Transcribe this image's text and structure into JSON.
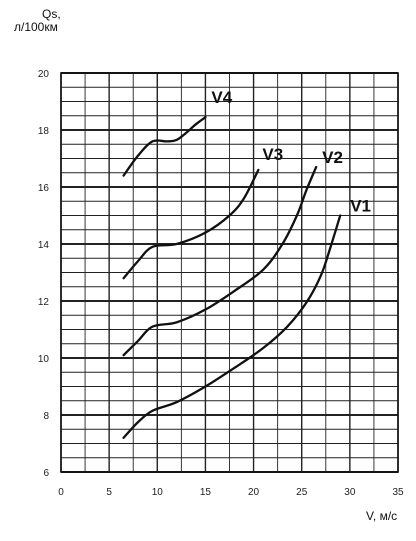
{
  "chart_data": {
    "type": "line",
    "ylabel_lines": [
      "Qs,",
      "л/100км"
    ],
    "xlabel": "V, м/с",
    "xlim": [
      0,
      35
    ],
    "ylim": [
      6,
      20
    ],
    "xticks": [
      0,
      5,
      10,
      15,
      20,
      25,
      30,
      35
    ],
    "yticks": [
      6,
      8,
      10,
      12,
      14,
      16,
      18,
      20
    ],
    "x_minor_step": 2.5,
    "y_minor_step": 0.5,
    "grid": true,
    "series": [
      {
        "name": "V1",
        "color": "#111111",
        "points": [
          [
            6.5,
            7.2
          ],
          [
            8.0,
            7.75
          ],
          [
            9.5,
            8.15
          ],
          [
            12.0,
            8.45
          ],
          [
            15.0,
            9.0
          ],
          [
            18.0,
            9.65
          ],
          [
            21.0,
            10.35
          ],
          [
            23.5,
            11.1
          ],
          [
            25.5,
            11.95
          ],
          [
            27.0,
            12.9
          ],
          [
            28.0,
            13.9
          ],
          [
            29.0,
            15.0
          ]
        ]
      },
      {
        "name": "V2",
        "color": "#111111",
        "points": [
          [
            6.5,
            10.1
          ],
          [
            8.0,
            10.6
          ],
          [
            9.5,
            11.1
          ],
          [
            12.0,
            11.25
          ],
          [
            15.0,
            11.7
          ],
          [
            18.0,
            12.35
          ],
          [
            21.0,
            13.1
          ],
          [
            23.0,
            14.0
          ],
          [
            24.5,
            15.0
          ],
          [
            25.5,
            15.9
          ],
          [
            26.5,
            16.7
          ]
        ]
      },
      {
        "name": "V3",
        "color": "#111111",
        "points": [
          [
            6.5,
            12.8
          ],
          [
            8.0,
            13.4
          ],
          [
            9.5,
            13.9
          ],
          [
            12.0,
            14.0
          ],
          [
            15.0,
            14.4
          ],
          [
            17.5,
            15.0
          ],
          [
            19.0,
            15.6
          ],
          [
            20.5,
            16.6
          ]
        ]
      },
      {
        "name": "V4",
        "color": "#111111",
        "points": [
          [
            6.5,
            16.4
          ],
          [
            8.0,
            17.1
          ],
          [
            9.5,
            17.6
          ],
          [
            11.0,
            17.6
          ],
          [
            12.0,
            17.65
          ],
          [
            13.0,
            17.9
          ],
          [
            14.0,
            18.2
          ],
          [
            15.0,
            18.45
          ]
        ]
      }
    ]
  }
}
